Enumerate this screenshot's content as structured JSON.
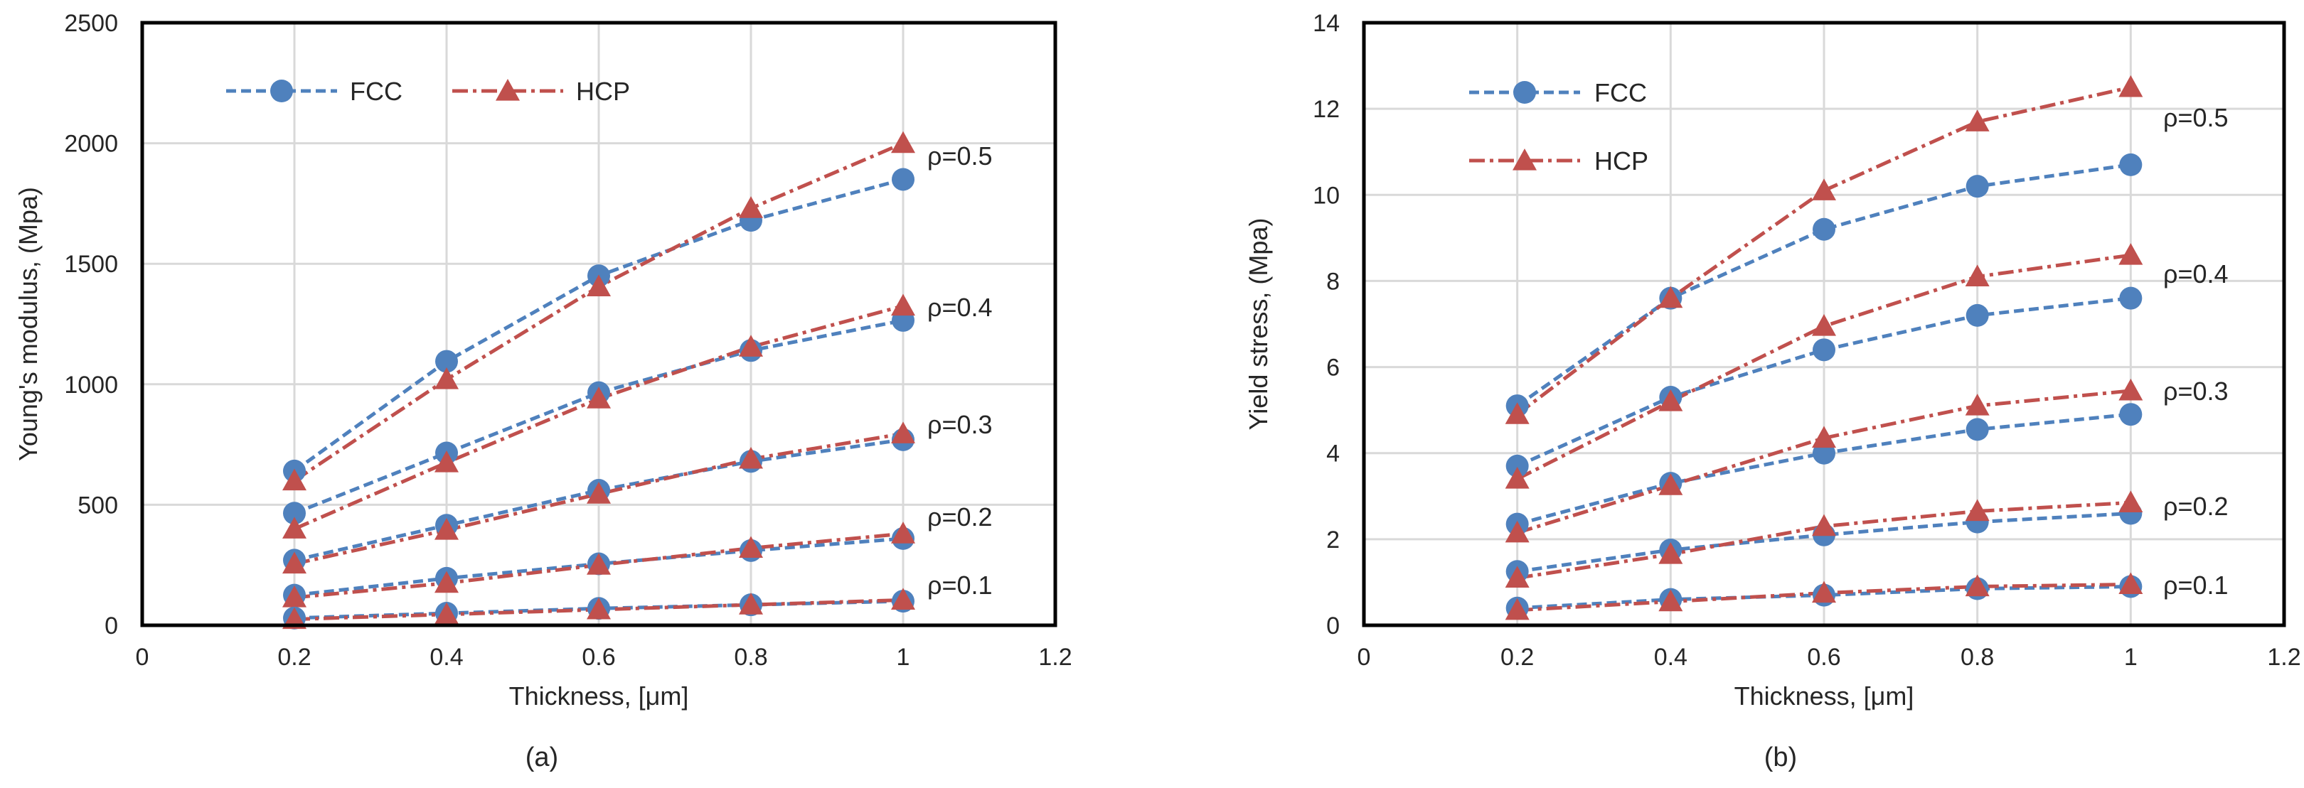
{
  "colors": {
    "fcc": "#4f81bd",
    "hcp": "#c0504d",
    "grid": "#d9d9d9",
    "frame": "#000000"
  },
  "chart_data": [
    {
      "type": "line",
      "caption": "(a)",
      "xlabel": "Thickness, [μm]",
      "ylabel": "Young's modulus, (Mpa)",
      "xlim": [
        0,
        1.2
      ],
      "ylim": [
        0,
        2500
      ],
      "xticks": [
        0,
        0.2,
        0.4,
        0.6,
        0.8,
        1,
        1.2
      ],
      "xtick_labels": [
        "0",
        "0.2",
        "0.4",
        "0.6",
        "0.8",
        "1",
        "1.2"
      ],
      "yticks": [
        0,
        500,
        1000,
        1500,
        2000,
        2500
      ],
      "ytick_labels": [
        "0",
        "500",
        "1000",
        "1500",
        "2000",
        "2500"
      ],
      "grid": true,
      "legend": {
        "position": "top-left",
        "entries": [
          {
            "name": "FCC",
            "marker": "circle"
          },
          {
            "name": "HCP",
            "marker": "triangle"
          }
        ]
      },
      "x": [
        0.2,
        0.4,
        0.6,
        0.8,
        1.0
      ],
      "annotations": [
        "ρ=0.5",
        "ρ=0.4",
        "ρ=0.3",
        "ρ=0.2",
        "ρ=0.1"
      ],
      "series": [
        {
          "name": "FCC",
          "rho": "ρ=0.5",
          "values": [
            640,
            1095,
            1450,
            1680,
            1850
          ]
        },
        {
          "name": "HCP",
          "rho": "ρ=0.5",
          "values": [
            600,
            1020,
            1405,
            1730,
            2000
          ]
        },
        {
          "name": "FCC",
          "rho": "ρ=0.4",
          "values": [
            465,
            715,
            965,
            1140,
            1265
          ]
        },
        {
          "name": "HCP",
          "rho": "ρ=0.4",
          "values": [
            400,
            675,
            940,
            1155,
            1325
          ]
        },
        {
          "name": "FCC",
          "rho": "ρ=0.3",
          "values": [
            270,
            415,
            560,
            680,
            770
          ]
        },
        {
          "name": "HCP",
          "rho": "ρ=0.3",
          "values": [
            255,
            395,
            545,
            690,
            795
          ]
        },
        {
          "name": "FCC",
          "rho": "ρ=0.2",
          "values": [
            125,
            195,
            255,
            310,
            360
          ]
        },
        {
          "name": "HCP",
          "rho": "ρ=0.2",
          "values": [
            115,
            175,
            250,
            320,
            380
          ]
        },
        {
          "name": "FCC",
          "rho": "ρ=0.1",
          "values": [
            30,
            50,
            70,
            85,
            100
          ]
        },
        {
          "name": "HCP",
          "rho": "ρ=0.1",
          "values": [
            25,
            45,
            65,
            85,
            105
          ]
        }
      ]
    },
    {
      "type": "line",
      "caption": "(b)",
      "xlabel": "Thickness, [μm]",
      "ylabel": "Yield stress, (Mpa)",
      "xlim": [
        0,
        1.2
      ],
      "ylim": [
        0,
        14
      ],
      "xticks": [
        0,
        0.2,
        0.4,
        0.6,
        0.8,
        1,
        1.2
      ],
      "xtick_labels": [
        "0",
        "0.2",
        "0.4",
        "0.6",
        "0.8",
        "1",
        "1.2"
      ],
      "yticks": [
        0,
        2,
        4,
        6,
        8,
        10,
        12,
        14
      ],
      "ytick_labels": [
        "0",
        "2",
        "4",
        "6",
        "8",
        "10",
        "12",
        "14"
      ],
      "grid": true,
      "legend": {
        "position": "top-left",
        "entries": [
          {
            "name": "FCC",
            "marker": "circle"
          },
          {
            "name": "HCP",
            "marker": "triangle"
          }
        ]
      },
      "x": [
        0.2,
        0.4,
        0.6,
        0.8,
        1.0
      ],
      "annotations": [
        "ρ=0.5",
        "ρ=0.4",
        "ρ=0.3",
        "ρ=0.2",
        "ρ=0.1"
      ],
      "series": [
        {
          "name": "FCC",
          "rho": "ρ=0.5",
          "values": [
            5.1,
            7.6,
            9.2,
            10.2,
            10.7
          ]
        },
        {
          "name": "HCP",
          "rho": "ρ=0.5",
          "values": [
            4.9,
            7.6,
            10.1,
            11.7,
            12.5
          ]
        },
        {
          "name": "FCC",
          "rho": "ρ=0.4",
          "values": [
            3.7,
            5.3,
            6.4,
            7.2,
            7.6
          ]
        },
        {
          "name": "HCP",
          "rho": "ρ=0.4",
          "values": [
            3.4,
            5.2,
            6.95,
            8.1,
            8.6
          ]
        },
        {
          "name": "FCC",
          "rho": "ρ=0.3",
          "values": [
            2.35,
            3.3,
            4.0,
            4.55,
            4.9
          ]
        },
        {
          "name": "HCP",
          "rho": "ρ=0.3",
          "values": [
            2.15,
            3.25,
            4.35,
            5.1,
            5.45
          ]
        },
        {
          "name": "FCC",
          "rho": "ρ=0.2",
          "values": [
            1.25,
            1.75,
            2.1,
            2.4,
            2.6
          ]
        },
        {
          "name": "HCP",
          "rho": "ρ=0.2",
          "values": [
            1.1,
            1.65,
            2.3,
            2.65,
            2.85
          ]
        },
        {
          "name": "FCC",
          "rho": "ρ=0.1",
          "values": [
            0.4,
            0.6,
            0.7,
            0.85,
            0.9
          ]
        },
        {
          "name": "HCP",
          "rho": "ρ=0.1",
          "values": [
            0.35,
            0.55,
            0.75,
            0.9,
            0.95
          ]
        }
      ]
    }
  ]
}
